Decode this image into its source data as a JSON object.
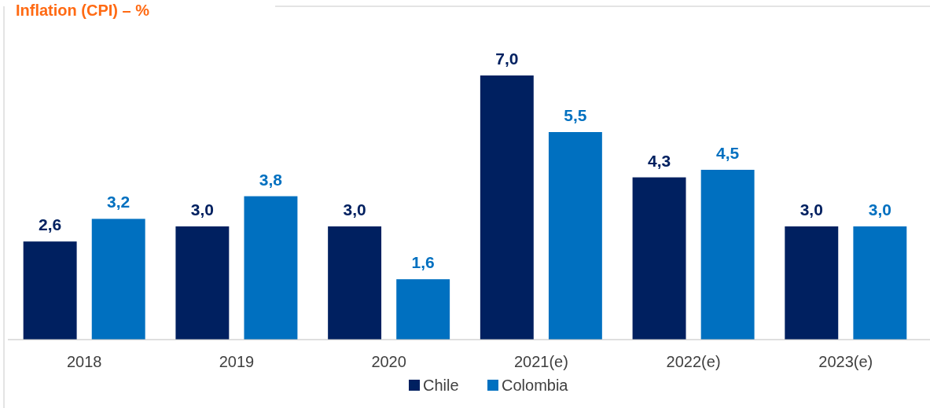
{
  "chart_data": {
    "type": "bar",
    "title": "Inflation (CPI) – %",
    "categories": [
      "2018",
      "2019",
      "2020",
      "2021(e)",
      "2022(e)",
      "2023(e)"
    ],
    "series": [
      {
        "name": "Chile",
        "color": "#002060",
        "values": [
          2.6,
          3.0,
          3.0,
          7.0,
          4.3,
          3.0
        ],
        "value_labels": [
          "2,6",
          "3,0",
          "3,0",
          "7,0",
          "4,3",
          "3,0"
        ]
      },
      {
        "name": "Colombia",
        "color": "#0070c0",
        "values": [
          3.2,
          3.8,
          1.6,
          5.5,
          4.5,
          3.0
        ],
        "value_labels": [
          "3,2",
          "3,8",
          "1,6",
          "5,5",
          "4,5",
          "3,0"
        ]
      }
    ],
    "grid": false,
    "legend": "bottom"
  }
}
